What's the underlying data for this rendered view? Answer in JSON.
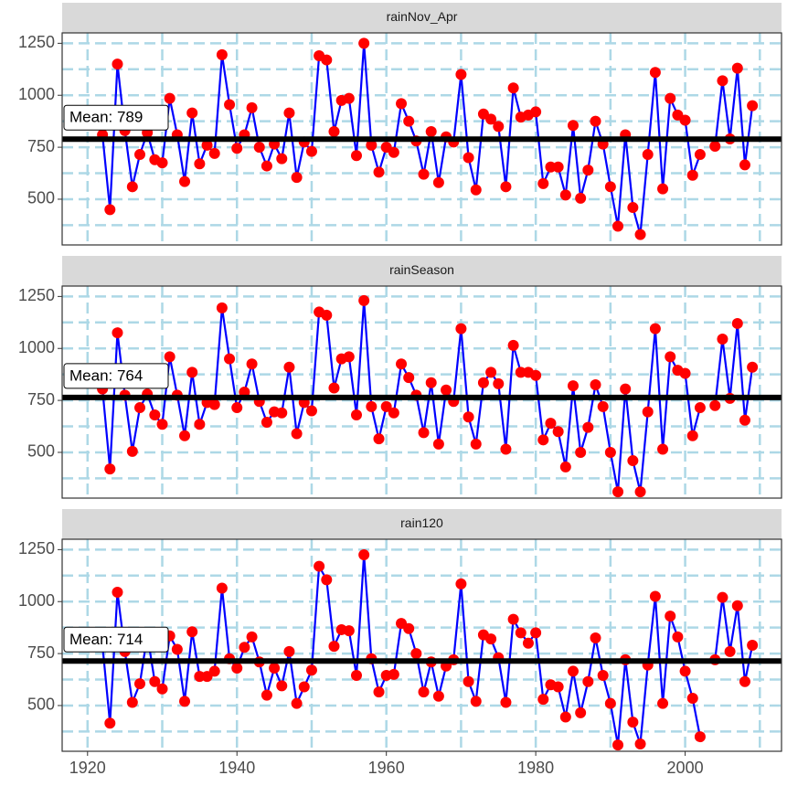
{
  "chart_data": [
    {
      "type": "line",
      "title": "rainNov_Apr",
      "x": [
        1922,
        1923,
        1924,
        1925,
        1926,
        1927,
        1928,
        1929,
        1930,
        1931,
        1932,
        1933,
        1934,
        1935,
        1936,
        1937,
        1938,
        1939,
        1940,
        1941,
        1942,
        1943,
        1944,
        1945,
        1946,
        1947,
        1948,
        1949,
        1950,
        1951,
        1952,
        1953,
        1954,
        1955,
        1956,
        1957,
        1958,
        1959,
        1960,
        1961,
        1962,
        1963,
        1964,
        1965,
        1966,
        1967,
        1968,
        1969,
        1970,
        1971,
        1972,
        1973,
        1974,
        1975,
        1976,
        1977,
        1978,
        1979,
        1980,
        1981,
        1982,
        1983,
        1984,
        1985,
        1986,
        1987,
        1988,
        1989,
        1990,
        1991,
        1992,
        1993,
        1994,
        1995,
        1996,
        1997,
        1998,
        1999,
        2000,
        2001,
        2002,
        2003,
        2004,
        2005,
        2006,
        2007,
        2008,
        2009
      ],
      "values": [
        810,
        450,
        1150,
        830,
        560,
        715,
        820,
        690,
        675,
        985,
        810,
        585,
        915,
        670,
        760,
        720,
        1195,
        955,
        745,
        810,
        940,
        750,
        660,
        765,
        695,
        915,
        605,
        775,
        730,
        1190,
        1170,
        825,
        975,
        985,
        710,
        1250,
        760,
        630,
        750,
        725,
        960,
        875,
        780,
        620,
        825,
        580,
        800,
        775,
        1100,
        700,
        545,
        910,
        885,
        850,
        560,
        1035,
        895,
        905,
        920,
        575,
        655,
        655,
        520,
        855,
        505,
        640,
        875,
        765,
        560,
        370,
        810,
        460,
        330,
        715,
        1110,
        550,
        985,
        905,
        880,
        615,
        715,
        null,
        755,
        1070,
        790,
        1130,
        665,
        950
      ],
      "mean": {
        "value": 789,
        "label": "Mean: 789"
      },
      "line_color": "#0000ff",
      "marker_color": "#ff0000",
      "grid": true,
      "grid_color": "#add8e6",
      "xlim": [
        1916.6,
        2012.9
      ],
      "xticks": [
        1920,
        1940,
        1960,
        1980,
        2000
      ],
      "x_minor_ticks": [
        1930,
        1950,
        1970,
        1990,
        2010
      ],
      "ylim": [
        280,
        1300
      ],
      "yticks": [
        500,
        750,
        1000,
        1250
      ],
      "y_minor_ticks": [
        375,
        625,
        875,
        1125
      ],
      "x_tick_labels": false
    },
    {
      "type": "line",
      "title": "rainSeason",
      "x": [
        1922,
        1923,
        1924,
        1925,
        1926,
        1927,
        1928,
        1929,
        1930,
        1931,
        1932,
        1933,
        1934,
        1935,
        1936,
        1937,
        1938,
        1939,
        1940,
        1941,
        1942,
        1943,
        1944,
        1945,
        1946,
        1947,
        1948,
        1949,
        1950,
        1951,
        1952,
        1953,
        1954,
        1955,
        1956,
        1957,
        1958,
        1959,
        1960,
        1961,
        1962,
        1963,
        1964,
        1965,
        1966,
        1967,
        1968,
        1969,
        1970,
        1971,
        1972,
        1973,
        1974,
        1975,
        1976,
        1977,
        1978,
        1979,
        1980,
        1981,
        1982,
        1983,
        1984,
        1985,
        1986,
        1987,
        1988,
        1989,
        1990,
        1991,
        1992,
        1993,
        1994,
        1995,
        1996,
        1997,
        1998,
        1999,
        2000,
        2001,
        2002,
        2003,
        2004,
        2005,
        2006,
        2007,
        2008,
        2009
      ],
      "values": [
        805,
        420,
        1075,
        775,
        505,
        715,
        780,
        680,
        635,
        960,
        775,
        580,
        885,
        635,
        740,
        730,
        1195,
        950,
        715,
        790,
        925,
        745,
        645,
        695,
        690,
        910,
        590,
        740,
        700,
        1175,
        1160,
        810,
        950,
        960,
        680,
        1230,
        720,
        565,
        720,
        690,
        925,
        860,
        775,
        595,
        835,
        540,
        800,
        745,
        1095,
        670,
        540,
        835,
        885,
        830,
        515,
        1015,
        885,
        885,
        870,
        560,
        640,
        600,
        430,
        820,
        500,
        620,
        825,
        720,
        500,
        310,
        805,
        460,
        310,
        695,
        1095,
        515,
        960,
        895,
        880,
        580,
        715,
        null,
        725,
        1045,
        760,
        1120,
        655,
        910
      ],
      "mean": {
        "value": 764,
        "label": "Mean: 764"
      },
      "line_color": "#0000ff",
      "marker_color": "#ff0000",
      "grid": true,
      "grid_color": "#add8e6",
      "xlim": [
        1916.6,
        2012.9
      ],
      "xticks": [
        1920,
        1940,
        1960,
        1980,
        2000
      ],
      "x_minor_ticks": [
        1930,
        1950,
        1970,
        1990,
        2010
      ],
      "ylim": [
        280,
        1300
      ],
      "yticks": [
        500,
        750,
        1000,
        1250
      ],
      "y_minor_ticks": [
        375,
        625,
        875,
        1125
      ],
      "x_tick_labels": false
    },
    {
      "type": "line",
      "title": "rain120",
      "x": [
        1922,
        1923,
        1924,
        1925,
        1926,
        1927,
        1928,
        1929,
        1930,
        1931,
        1932,
        1933,
        1934,
        1935,
        1936,
        1937,
        1938,
        1939,
        1940,
        1941,
        1942,
        1943,
        1944,
        1945,
        1946,
        1947,
        1948,
        1949,
        1950,
        1951,
        1952,
        1953,
        1954,
        1955,
        1956,
        1957,
        1958,
        1959,
        1960,
        1961,
        1962,
        1963,
        1964,
        1965,
        1966,
        1967,
        1968,
        1969,
        1970,
        1971,
        1972,
        1973,
        1974,
        1975,
        1976,
        1977,
        1978,
        1979,
        1980,
        1981,
        1982,
        1983,
        1984,
        1985,
        1986,
        1987,
        1988,
        1989,
        1990,
        1991,
        1992,
        1993,
        1994,
        1995,
        1996,
        1997,
        1998,
        1999,
        2000,
        2001,
        2002,
        2003,
        2004,
        2005,
        2006,
        2007,
        2008,
        2009
      ],
      "values": [
        790,
        415,
        1045,
        760,
        515,
        605,
        840,
        615,
        580,
        835,
        770,
        520,
        855,
        640,
        640,
        665,
        1065,
        725,
        680,
        780,
        830,
        710,
        550,
        680,
        595,
        760,
        510,
        590,
        670,
        1170,
        1105,
        785,
        865,
        860,
        645,
        1225,
        725,
        565,
        645,
        650,
        895,
        870,
        750,
        565,
        710,
        545,
        690,
        720,
        1085,
        615,
        520,
        840,
        820,
        730,
        515,
        915,
        850,
        800,
        850,
        530,
        600,
        590,
        445,
        665,
        465,
        615,
        825,
        645,
        510,
        310,
        720,
        420,
        315,
        695,
        1025,
        510,
        930,
        830,
        665,
        535,
        350,
        null,
        720,
        1020,
        760,
        980,
        615,
        790
      ],
      "mean": {
        "value": 714,
        "label": "Mean: 714"
      },
      "line_color": "#0000ff",
      "marker_color": "#ff0000",
      "grid": true,
      "grid_color": "#add8e6",
      "xlim": [
        1916.6,
        2012.9
      ],
      "xticks": [
        1920,
        1940,
        1960,
        1980,
        2000
      ],
      "x_minor_ticks": [
        1930,
        1950,
        1970,
        1990,
        2010
      ],
      "ylim": [
        280,
        1300
      ],
      "yticks": [
        500,
        750,
        1000,
        1250
      ],
      "y_minor_ticks": [
        375,
        625,
        875,
        1125
      ],
      "x_tick_labels": true
    }
  ]
}
